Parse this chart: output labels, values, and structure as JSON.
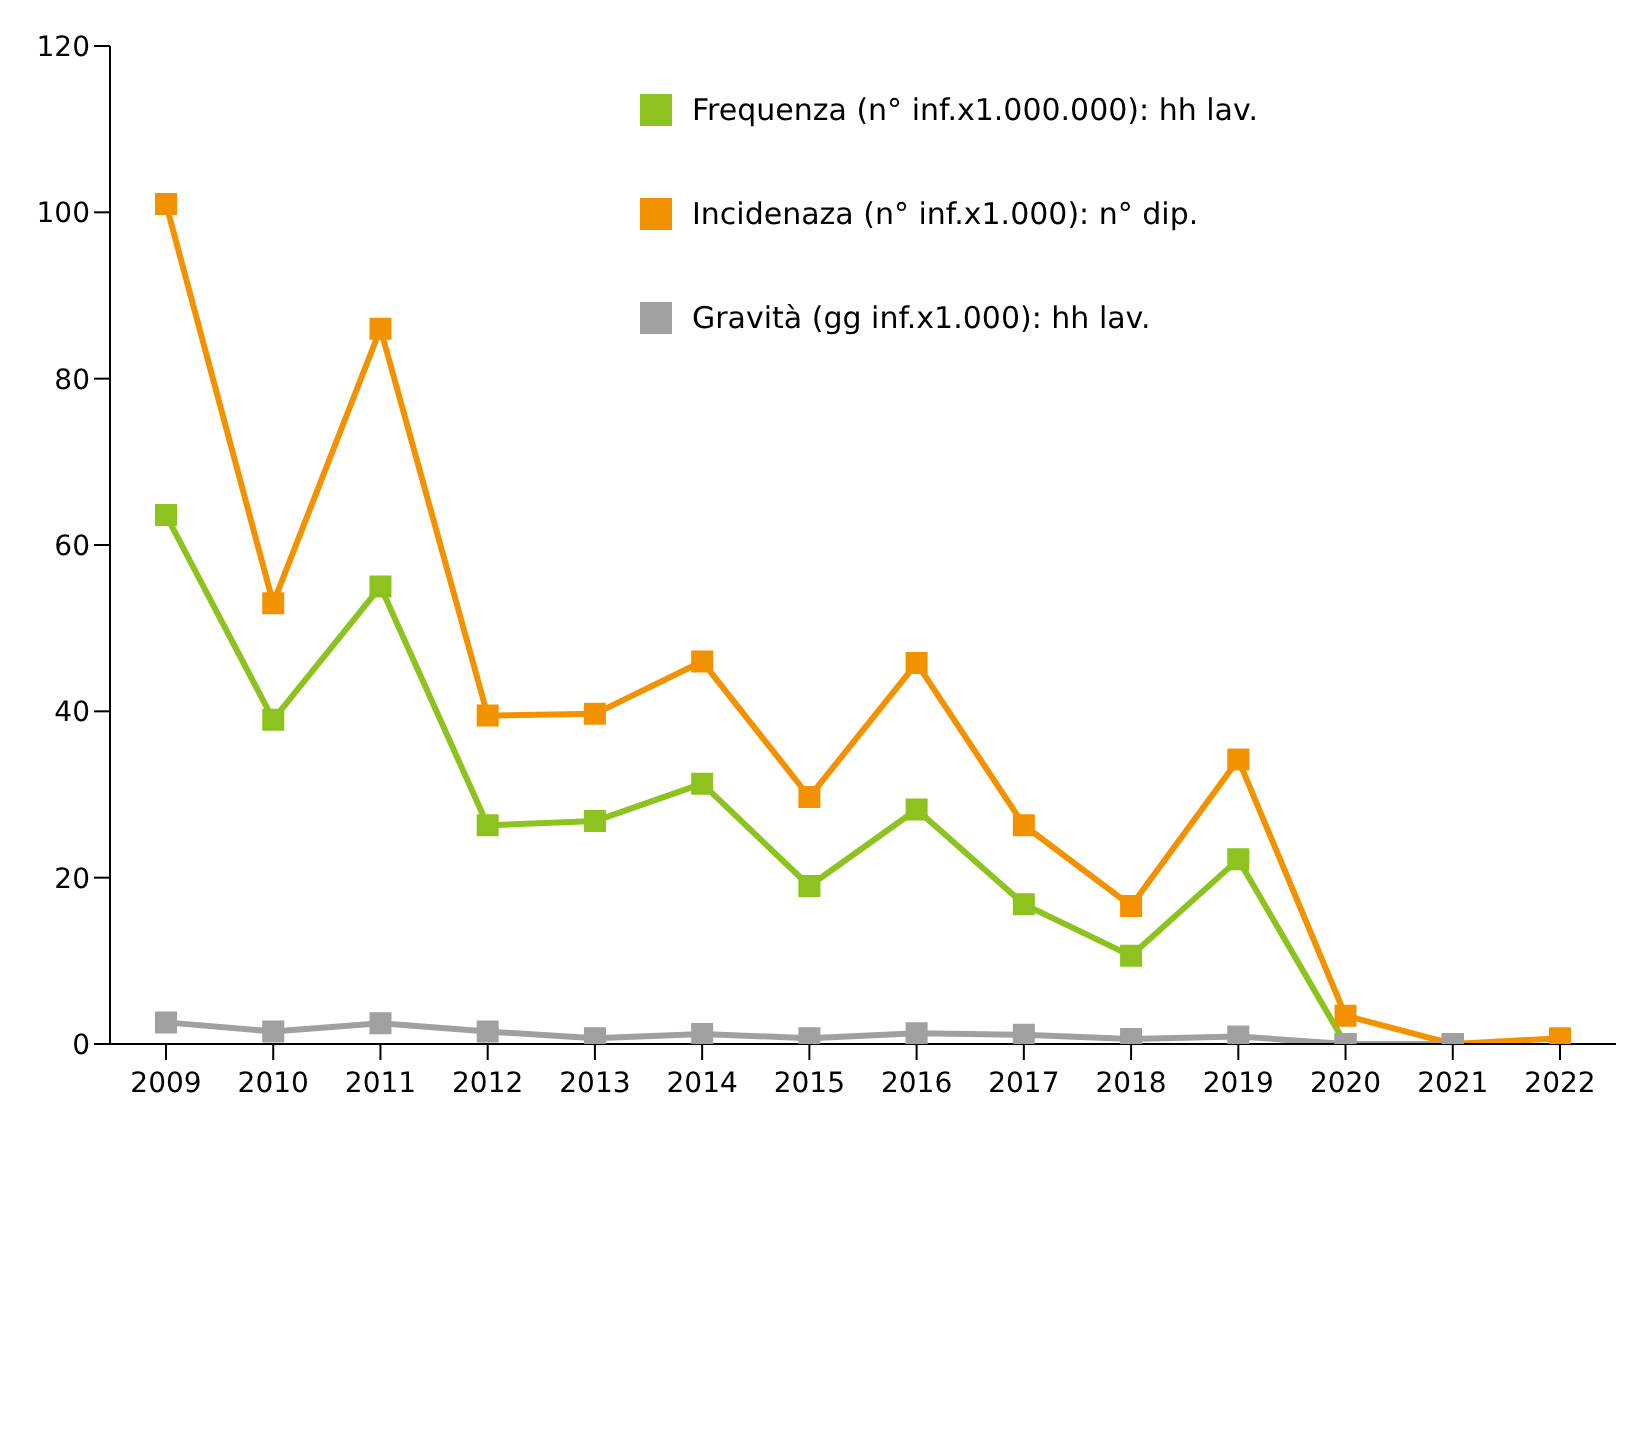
{
  "chart_data": {
    "type": "line",
    "categories": [
      "2009",
      "2010",
      "2011",
      "2012",
      "2013",
      "2014",
      "2015",
      "2016",
      "2017",
      "2018",
      "2019",
      "2020",
      "2021",
      "2022"
    ],
    "series": [
      {
        "name": "Frequenza (n° inf.x1.000.000): hh lav.",
        "color": "#8dc21f",
        "values": [
          63.6,
          39,
          55,
          26.3,
          26.8,
          31.3,
          19,
          28.2,
          16.8,
          10.6,
          22.2,
          0,
          0,
          null
        ]
      },
      {
        "name": "Incidenaza (n° inf.x1.000): n° dip.",
        "color": "#f39200",
        "values": [
          101,
          53,
          86,
          39.5,
          39.7,
          46,
          29.7,
          45.8,
          26.3,
          16.6,
          34.2,
          3.4,
          0,
          0.7
        ]
      },
      {
        "name": "Gravità (gg inf.x1.000): hh lav.",
        "color": "#a0a0a0",
        "values": [
          2.6,
          1.5,
          2.5,
          1.5,
          0.7,
          1.2,
          0.7,
          1.3,
          1.1,
          0.6,
          0.9,
          0,
          0,
          null
        ]
      }
    ],
    "ylim": [
      0,
      120
    ],
    "yticks": [
      0,
      20,
      40,
      60,
      80,
      100,
      120
    ],
    "grid": false,
    "legend": "top right",
    "marker": "square",
    "line_style": "solid"
  }
}
